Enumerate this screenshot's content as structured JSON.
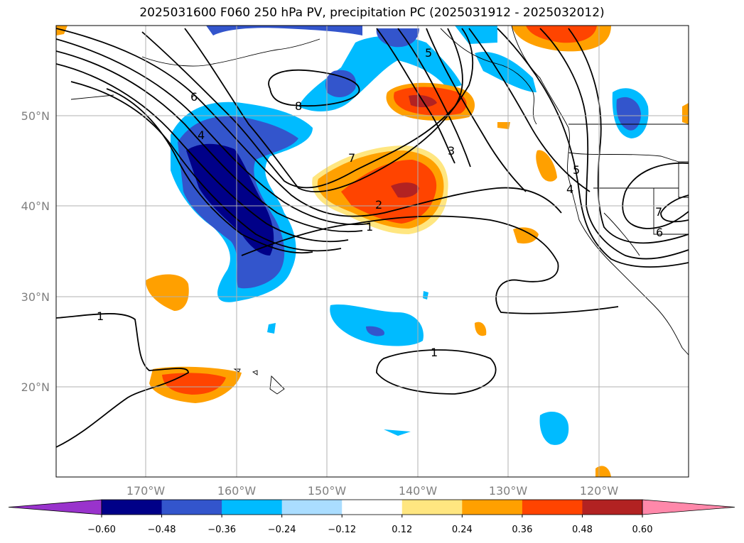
{
  "title": "2025031600 F060 250 hPa PV, precipitation PC (2025031912 - 2025032012)",
  "lat_labels": [
    "50°N",
    "40°N",
    "30°N",
    "20°N"
  ],
  "lon_labels": [
    "170°W",
    "160°W",
    "150°W",
    "140°W",
    "130°W",
    "120°W"
  ],
  "colorbar": {
    "ticks": [
      "−0.60",
      "−0.48",
      "−0.36",
      "−0.24",
      "−0.12",
      "0.12",
      "0.24",
      "0.36",
      "0.48",
      "0.60"
    ],
    "colors": [
      "#9933cc",
      "#000088",
      "#3355cc",
      "#00bbff",
      "#aaddff",
      "#ffffff",
      "#ffe680",
      "#ffa000",
      "#ff4400",
      "#b22222",
      "#ff88aa"
    ]
  },
  "contour_labels": [
    "6",
    "4",
    "8",
    "5",
    "7",
    "3",
    "2",
    "1",
    "5",
    "4",
    "7",
    "6",
    "1",
    "1"
  ]
}
